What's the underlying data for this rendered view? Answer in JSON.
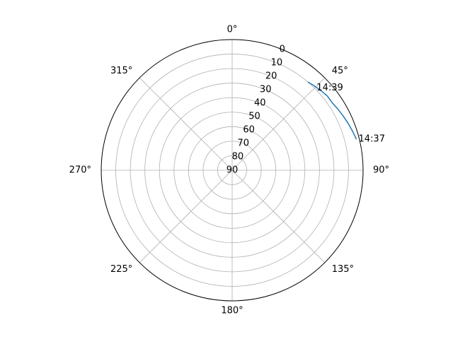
{
  "chart_data": {
    "type": "polar-line",
    "theta_direction": "clockwise",
    "theta_zero_location": "top",
    "r_axis": "elevation",
    "r_inverted": true,
    "rlim": [
      90,
      0
    ],
    "theta_tick_labels": [
      "0°",
      "45°",
      "90°",
      "135°",
      "180°",
      "225°",
      "270°",
      "315°"
    ],
    "r_tick_labels": [
      "0",
      "10",
      "20",
      "30",
      "40",
      "50",
      "60",
      "70",
      "80",
      "90"
    ],
    "grid": true,
    "series": [
      {
        "color": "#1f77b4",
        "azimuth": [
          40.5,
          44,
          48,
          52,
          56,
          60,
          64,
          68,
          72,
          76
        ],
        "elevation": [
          10,
          9,
          8,
          7,
          7,
          6,
          5,
          4,
          3,
          2
        ]
      }
    ],
    "annotations": [
      {
        "text": "14:39",
        "azimuth": 45,
        "elevation": 10
      },
      {
        "text": "14:37",
        "azimuth": 76,
        "elevation": 2
      }
    ]
  }
}
